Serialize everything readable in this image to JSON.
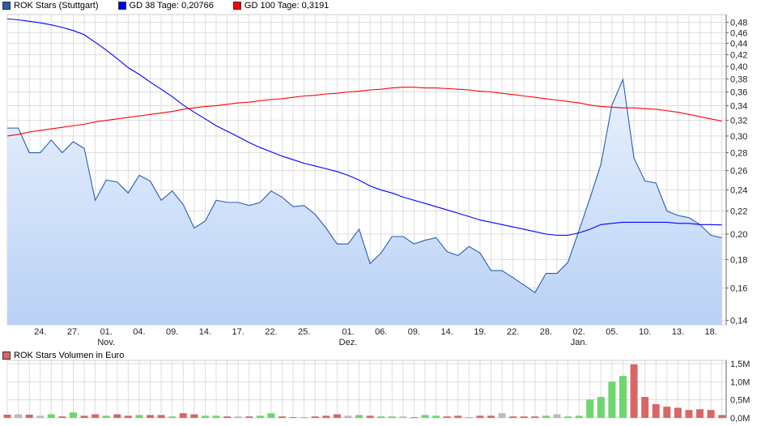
{
  "legend": [
    {
      "label": "ROK Stars (Stuttgart)",
      "color": "#2a5db0"
    },
    {
      "label": "GD 38 Tage: 0,20766",
      "color": "#0000ff"
    },
    {
      "label": "GD 100 Tage: 0,3191",
      "color": "#ff0000"
    }
  ],
  "volume_legend": {
    "label": "ROK Stars Volumen in Euro",
    "color": "#d96666"
  },
  "chart_data": [
    {
      "type": "area",
      "yscale": "log",
      "ylim": [
        0.14,
        0.49
      ],
      "grid": true,
      "legend_placement": "top-left",
      "y_ticks": [
        "0,14",
        "0,16",
        "0,18",
        "0,20",
        "0,22",
        "0,24",
        "0,26",
        "0,28",
        "0,30",
        "0,32",
        "0,34",
        "0,36",
        "0,38",
        "0,40",
        "0,42",
        "0,44",
        "0,46",
        "0,48"
      ],
      "y_tick_values": [
        0.14,
        0.16,
        0.18,
        0.2,
        0.22,
        0.24,
        0.26,
        0.28,
        0.3,
        0.32,
        0.34,
        0.36,
        0.38,
        0.4,
        0.42,
        0.44,
        0.46,
        0.48
      ],
      "x_ticks": [
        {
          "i": 3,
          "label": "24."
        },
        {
          "i": 6,
          "label": "27."
        },
        {
          "i": 9,
          "label": "01.",
          "month": "Nov."
        },
        {
          "i": 12,
          "label": "04."
        },
        {
          "i": 15,
          "label": "09."
        },
        {
          "i": 18,
          "label": "14."
        },
        {
          "i": 21,
          "label": "17."
        },
        {
          "i": 24,
          "label": "22."
        },
        {
          "i": 27,
          "label": "25."
        },
        {
          "i": 31,
          "label": "01.",
          "month": "Dez."
        },
        {
          "i": 34,
          "label": "06."
        },
        {
          "i": 37,
          "label": "09."
        },
        {
          "i": 40,
          "label": "14."
        },
        {
          "i": 43,
          "label": "19."
        },
        {
          "i": 46,
          "label": "22."
        },
        {
          "i": 49,
          "label": "28."
        },
        {
          "i": 52,
          "label": "02.",
          "month": "Jan."
        },
        {
          "i": 55,
          "label": "05."
        },
        {
          "i": 58,
          "label": "10."
        },
        {
          "i": 61,
          "label": "13."
        },
        {
          "i": 64,
          "label": "18."
        }
      ],
      "series": [
        {
          "name": "ROK Stars (Stuttgart)",
          "color": "#2a5db0",
          "values": [
            0.31,
            0.31,
            0.28,
            0.28,
            0.295,
            0.28,
            0.293,
            0.285,
            0.23,
            0.25,
            0.248,
            0.237,
            0.255,
            0.249,
            0.23,
            0.239,
            0.226,
            0.205,
            0.211,
            0.23,
            0.228,
            0.228,
            0.225,
            0.228,
            0.239,
            0.233,
            0.224,
            0.225,
            0.217,
            0.205,
            0.192,
            0.192,
            0.204,
            0.177,
            0.185,
            0.198,
            0.198,
            0.192,
            0.195,
            0.197,
            0.186,
            0.183,
            0.19,
            0.185,
            0.172,
            0.172,
            0.167,
            0.162,
            0.157,
            0.17,
            0.17,
            0.178,
            0.203,
            0.232,
            0.267,
            0.341,
            0.379,
            0.274,
            0.249,
            0.247,
            0.22,
            0.216,
            0.214,
            0.208,
            0.199,
            0.197
          ]
        },
        {
          "name": "GD 38 Tage",
          "color": "#0000ff",
          "values": [
            0.487,
            0.485,
            0.482,
            0.479,
            0.475,
            0.47,
            0.464,
            0.456,
            0.442,
            0.428,
            0.413,
            0.398,
            0.387,
            0.375,
            0.364,
            0.353,
            0.341,
            0.331,
            0.322,
            0.313,
            0.306,
            0.299,
            0.292,
            0.286,
            0.281,
            0.276,
            0.272,
            0.268,
            0.265,
            0.262,
            0.259,
            0.255,
            0.25,
            0.244,
            0.24,
            0.237,
            0.233,
            0.23,
            0.227,
            0.224,
            0.221,
            0.218,
            0.215,
            0.212,
            0.21,
            0.208,
            0.206,
            0.204,
            0.202,
            0.2,
            0.199,
            0.199,
            0.201,
            0.204,
            0.208,
            0.209,
            0.21,
            0.21,
            0.21,
            0.21,
            0.21,
            0.209,
            0.209,
            0.208,
            0.208,
            0.2077
          ]
        },
        {
          "name": "GD 100 Tage",
          "color": "#ff0000",
          "values": [
            0.3,
            0.302,
            0.305,
            0.307,
            0.309,
            0.311,
            0.313,
            0.315,
            0.318,
            0.32,
            0.322,
            0.324,
            0.326,
            0.328,
            0.33,
            0.332,
            0.335,
            0.337,
            0.339,
            0.34,
            0.342,
            0.344,
            0.345,
            0.347,
            0.349,
            0.35,
            0.352,
            0.354,
            0.355,
            0.357,
            0.358,
            0.36,
            0.361,
            0.363,
            0.364,
            0.366,
            0.367,
            0.367,
            0.366,
            0.366,
            0.365,
            0.364,
            0.363,
            0.361,
            0.36,
            0.358,
            0.356,
            0.354,
            0.352,
            0.35,
            0.348,
            0.346,
            0.344,
            0.341,
            0.339,
            0.338,
            0.337,
            0.337,
            0.336,
            0.335,
            0.333,
            0.331,
            0.328,
            0.325,
            0.322,
            0.319
          ]
        }
      ]
    },
    {
      "type": "bar",
      "ylim": [
        0,
        1.5
      ],
      "unit": "M",
      "grid": true,
      "y_ticks": [
        "0,0M",
        "0,5M",
        "1,0M",
        "1,5M"
      ],
      "y_tick_values": [
        0,
        0.5,
        1.0,
        1.5
      ],
      "colors": {
        "up": "#6dd66d",
        "down": "#d96666",
        "flat": "#bbbbbb"
      },
      "values": [
        0.09,
        0.1,
        0.09,
        0.06,
        0.1,
        0.04,
        0.15,
        0.06,
        0.1,
        0.06,
        0.1,
        0.06,
        0.08,
        0.08,
        0.08,
        0.04,
        0.13,
        0.1,
        0.06,
        0.06,
        0.04,
        0.04,
        0.04,
        0.06,
        0.13,
        0.04,
        0.02,
        0.02,
        0.04,
        0.06,
        0.1,
        0.06,
        0.08,
        0.06,
        0.04,
        0.04,
        0.04,
        0.02,
        0.08,
        0.06,
        0.04,
        0.06,
        0.02,
        0.06,
        0.06,
        0.13,
        0.04,
        0.04,
        0.04,
        0.06,
        0.1,
        0.04,
        0.06,
        0.51,
        0.58,
        1.0,
        1.16,
        1.48,
        0.58,
        0.38,
        0.31,
        0.28,
        0.22,
        0.24,
        0.22,
        0.08
      ],
      "directions": [
        "down",
        "flat",
        "down",
        "flat",
        "up",
        "down",
        "up",
        "down",
        "down",
        "up",
        "down",
        "down",
        "up",
        "down",
        "down",
        "up",
        "down",
        "down",
        "up",
        "up",
        "down",
        "flat",
        "down",
        "up",
        "up",
        "down",
        "down",
        "up",
        "down",
        "down",
        "down",
        "flat",
        "up",
        "down",
        "up",
        "up",
        "flat",
        "down",
        "up",
        "up",
        "down",
        "down",
        "up",
        "down",
        "down",
        "flat",
        "down",
        "down",
        "down",
        "up",
        "flat",
        "up",
        "up",
        "up",
        "up",
        "up",
        "up",
        "down",
        "down",
        "down",
        "down",
        "down",
        "down",
        "down",
        "down",
        "down"
      ]
    }
  ]
}
